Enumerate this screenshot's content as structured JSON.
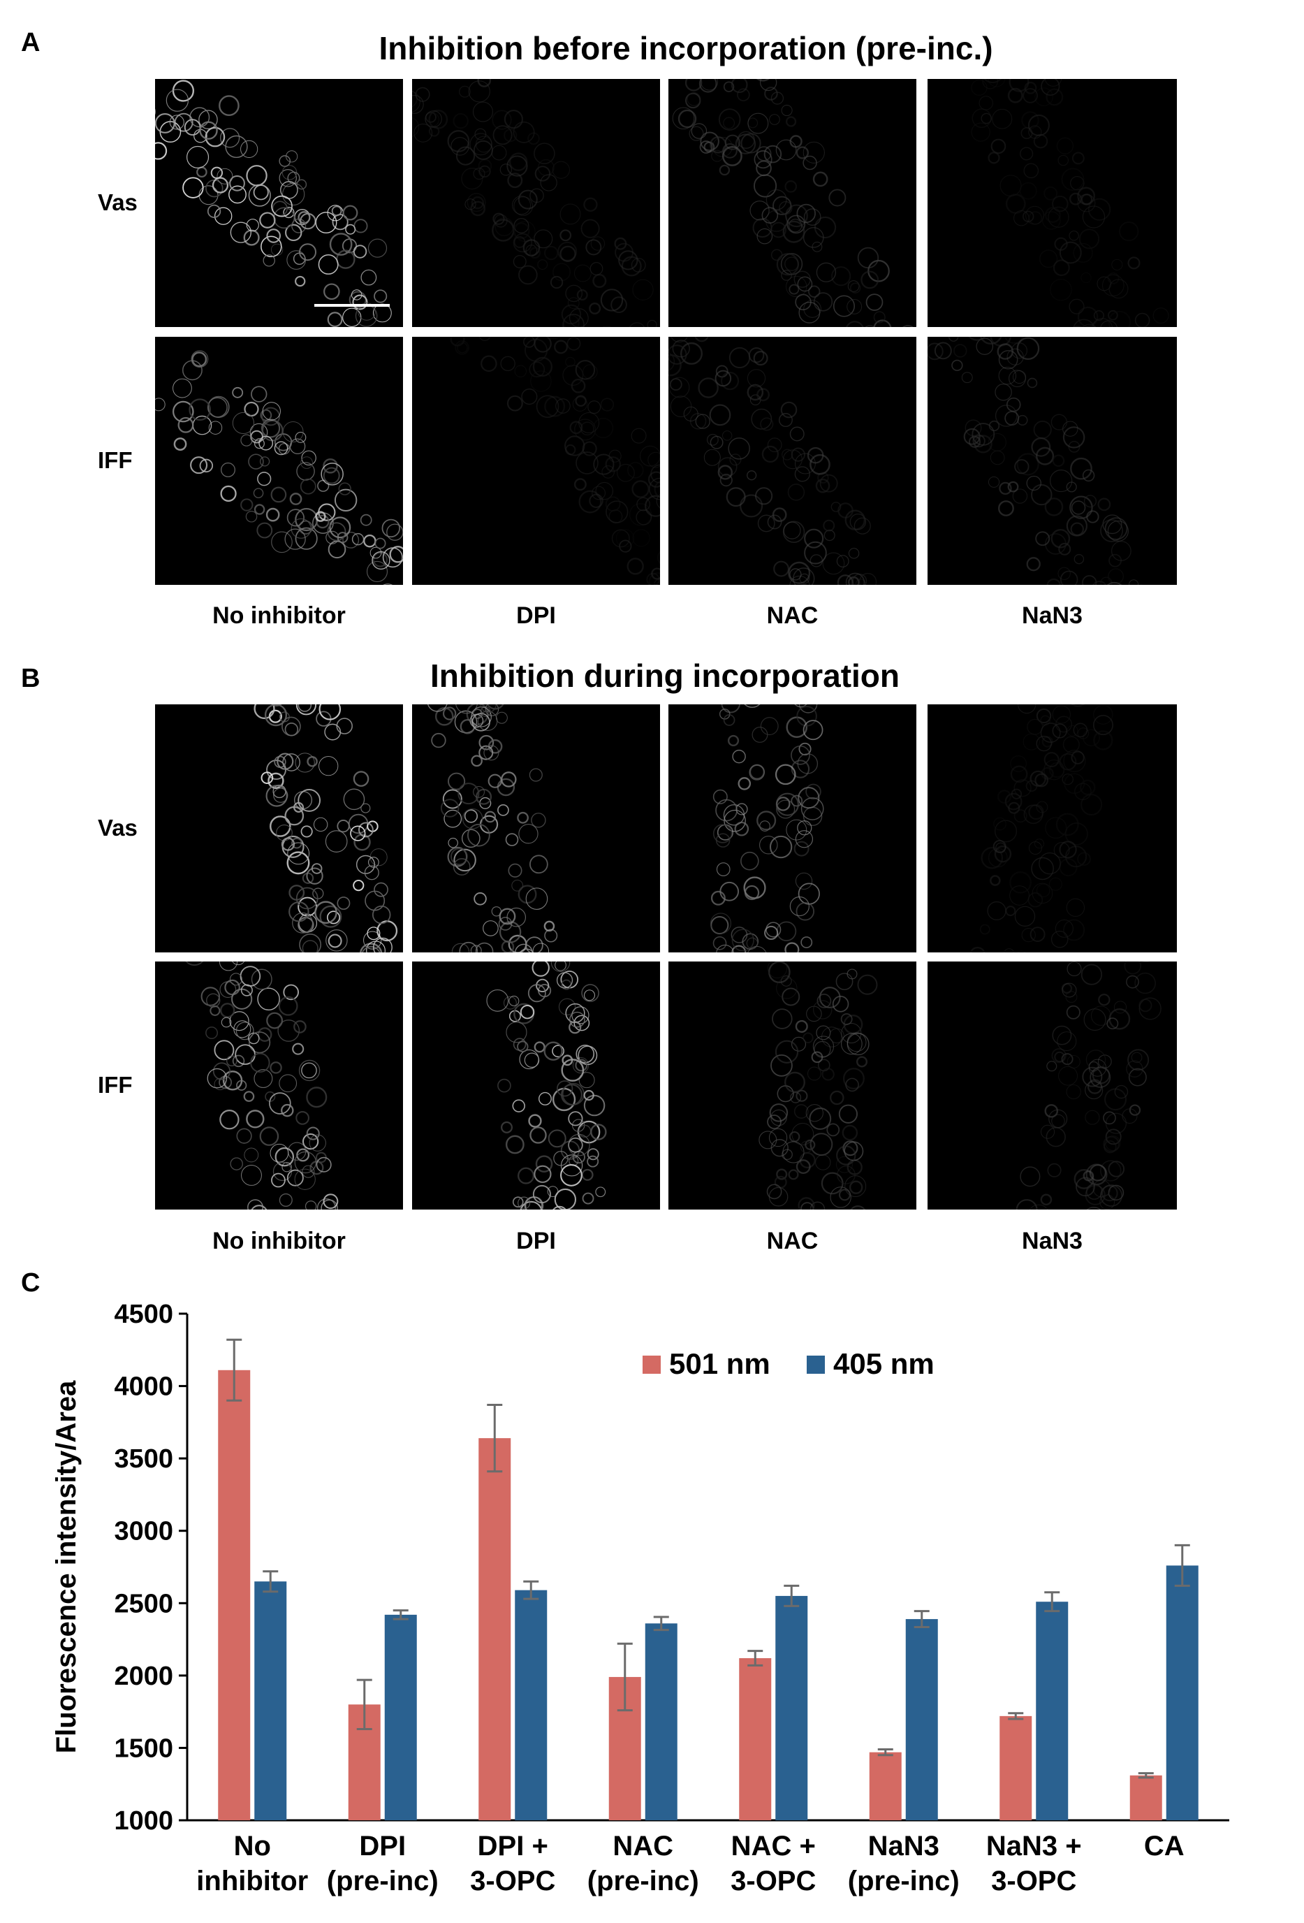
{
  "panel_a": {
    "letter": "A",
    "title": "Inhibition before incorporation (pre-inc.)",
    "rows": [
      "Vas",
      "IFF"
    ],
    "columns": [
      "No inhibitor",
      "DPI",
      "NAC",
      "NaN3"
    ],
    "brightness": [
      [
        0.95,
        0.22,
        0.35,
        0.16
      ],
      [
        0.8,
        0.18,
        0.3,
        0.28
      ]
    ]
  },
  "panel_b": {
    "letter": "B",
    "title": "Inhibition during incorporation",
    "rows": [
      "Vas",
      "IFF"
    ],
    "columns": [
      "No inhibitor",
      "DPI",
      "NAC",
      "NaN3"
    ],
    "brightness": [
      [
        0.95,
        0.75,
        0.6,
        0.18
      ],
      [
        0.8,
        0.85,
        0.4,
        0.3
      ]
    ]
  },
  "panel_c": {
    "letter": "C"
  },
  "chart_data": {
    "type": "bar",
    "categories": [
      [
        "No",
        "inhibitor"
      ],
      [
        "DPI",
        "(pre-inc)"
      ],
      [
        "DPI +",
        "3-OPC"
      ],
      [
        "NAC",
        "(pre-inc)"
      ],
      [
        "NAC +",
        "3-OPC"
      ],
      [
        "NaN3",
        "(pre-inc)"
      ],
      [
        "NaN3 +",
        "3-OPC"
      ],
      [
        "CA"
      ]
    ],
    "series": [
      {
        "name": "501 nm",
        "color": "#d46a63",
        "values": [
          4110,
          1800,
          3640,
          1990,
          2120,
          1470,
          1720,
          1310
        ],
        "errors": [
          210,
          170,
          230,
          230,
          50,
          20,
          20,
          15
        ]
      },
      {
        "name": "405 nm",
        "color": "#2a6190",
        "values": [
          2650,
          2420,
          2590,
          2360,
          2550,
          2390,
          2510,
          2760
        ],
        "errors": [
          70,
          30,
          60,
          45,
          70,
          55,
          65,
          140
        ]
      }
    ],
    "ylabel": "Fluorescence intensity/Area",
    "xlabel": "",
    "ylim": [
      1000,
      4500
    ],
    "yticks": [
      1000,
      1500,
      2000,
      2500,
      3000,
      3500,
      4000,
      4500
    ],
    "legend_position": "top-center",
    "error_bar_color": "#6b6b6b",
    "grid": false
  }
}
